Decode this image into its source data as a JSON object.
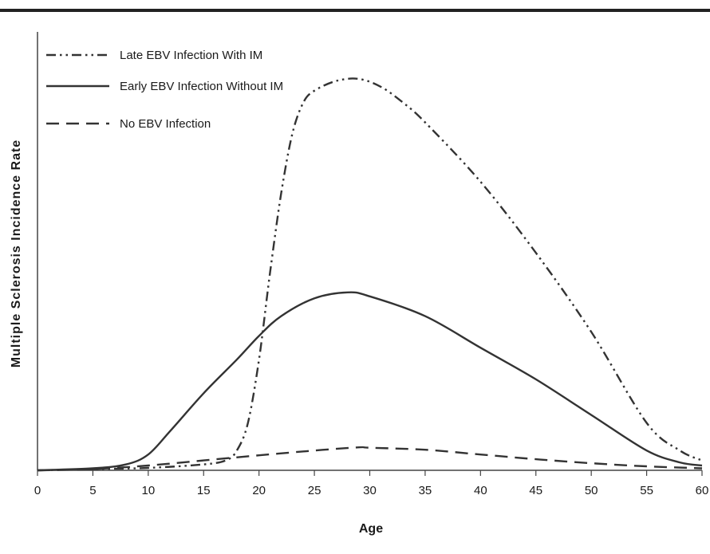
{
  "chart_data": {
    "type": "line",
    "title": "",
    "xlabel": "Age",
    "ylabel": "Multiple Sclerosis Incidence Rate",
    "xlim": [
      0,
      60
    ],
    "ylim": [
      0,
      100
    ],
    "x_ticks": [
      "0",
      "5",
      "10",
      "15",
      "20",
      "25",
      "30",
      "35",
      "40",
      "45",
      "50",
      "55",
      "60"
    ],
    "y_ticks_shown": false,
    "grid": false,
    "legend_position": "top-left",
    "series": [
      {
        "name": "Late EBV Infection With IM",
        "style": "dash-dot-dot",
        "color": "#333333",
        "x": [
          0,
          5,
          10,
          15,
          17,
          18,
          19,
          20,
          21,
          22,
          23,
          24,
          25,
          27,
          29,
          31,
          33,
          35,
          40,
          45,
          50,
          55,
          58,
          60
        ],
        "y": [
          0,
          0.3,
          0.6,
          1.5,
          2.5,
          5,
          12,
          28,
          50,
          70,
          85,
          93,
          96,
          98.5,
          99,
          97,
          93,
          88,
          73,
          55,
          35,
          12,
          5,
          2.5
        ]
      },
      {
        "name": "Early EBV Infection Without IM",
        "style": "solid",
        "color": "#333333",
        "x": [
          0,
          5,
          8,
          10,
          12,
          15,
          18,
          20,
          22,
          25,
          28,
          30,
          35,
          40,
          45,
          50,
          55,
          58,
          60
        ],
        "y": [
          0,
          0.5,
          1.5,
          4,
          10,
          19.5,
          28,
          34,
          39,
          43.5,
          45,
          44,
          39,
          31,
          23,
          14,
          5,
          2,
          1.2
        ]
      },
      {
        "name": "No EBV Infection",
        "style": "dashed",
        "color": "#333333",
        "x": [
          0,
          5,
          10,
          15,
          20,
          25,
          29,
          30,
          35,
          40,
          45,
          50,
          55,
          60
        ],
        "y": [
          0,
          0.3,
          1.2,
          2.5,
          3.8,
          5,
          5.8,
          5.7,
          5.2,
          4,
          2.8,
          1.8,
          1,
          0.5
        ]
      }
    ]
  }
}
